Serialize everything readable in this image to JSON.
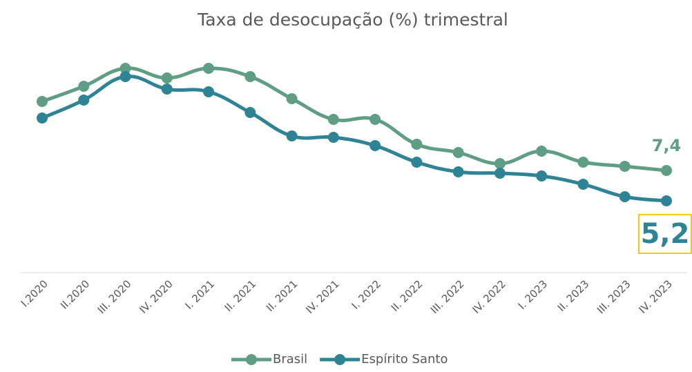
{
  "chart_data": {
    "type": "line",
    "title": "Taxa de desocupação (%) trimestral",
    "categories": [
      "I.2020",
      "II.2020",
      "III. 2020",
      "IV. 2020",
      "I. 2021",
      "II. 2021",
      "II. 2021",
      "IV. 2021",
      "I. 2022",
      "II. 2022",
      "III. 2022",
      "IV. 2022",
      "I. 2023",
      "II. 2023",
      "III. 2023",
      "IV. 2023"
    ],
    "series": [
      {
        "name": "Brasil",
        "color": "#5f9e84",
        "values": [
          12.4,
          13.5,
          14.8,
          14.1,
          14.8,
          14.2,
          12.6,
          11.1,
          11.1,
          9.3,
          8.7,
          7.9,
          8.8,
          8.0,
          7.7,
          7.4
        ],
        "value_labels": [
          null,
          null,
          null,
          null,
          null,
          null,
          null,
          null,
          null,
          null,
          null,
          null,
          null,
          null,
          null,
          "7,4"
        ]
      },
      {
        "name": "Espírito Santo",
        "color": "#2e8494",
        "values": [
          11.2,
          12.5,
          14.2,
          13.3,
          13.1,
          11.6,
          9.9,
          9.8,
          9.2,
          8.0,
          7.3,
          7.2,
          7.0,
          6.4,
          5.5,
          5.2
        ],
        "value_labels": [
          null,
          null,
          null,
          null,
          null,
          null,
          null,
          null,
          null,
          null,
          null,
          null,
          null,
          null,
          null,
          "5,2"
        ]
      }
    ],
    "ylim": [
      0,
      16
    ]
  }
}
